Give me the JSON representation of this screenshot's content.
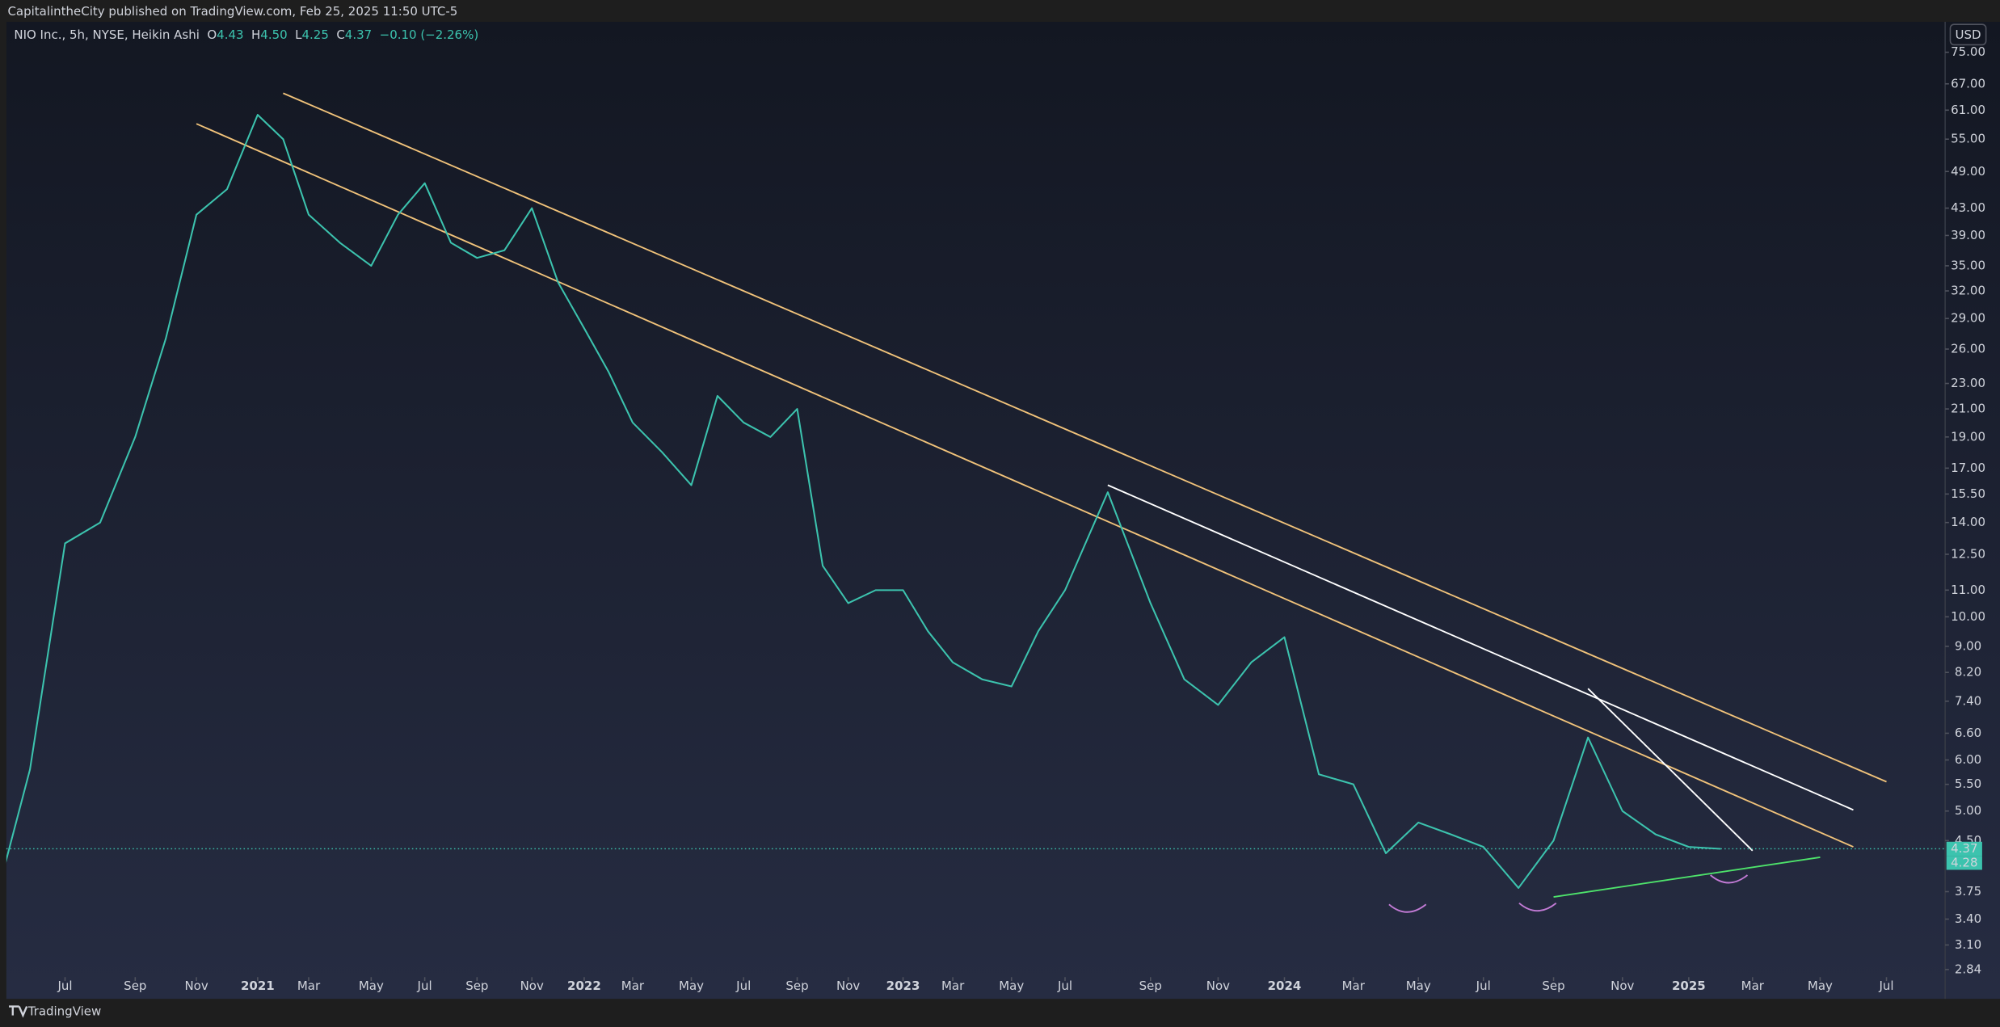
{
  "header": {
    "publisher": "CapitalintheCity published on TradingView.com, Feb 25, 2025 11:50 UTC-5",
    "footer": "TradingView"
  },
  "chart_data": {
    "type": "line",
    "title": "NIO Inc., 5h, NYSE, Heikin Ashi",
    "ohlc": {
      "open_label": "O",
      "open": 4.43,
      "high_label": "H",
      "high": {
        "value": 4.5,
        "label": "4.50"
      },
      "low_label": "L",
      "low": 4.25,
      "close_label": "C",
      "close": 4.37,
      "change": "−0.10 (−2.26%)"
    },
    "currency": "USD",
    "color": "#3cc3ae",
    "scale": "log",
    "price_tags": [
      4.37,
      4.28
    ],
    "x": [
      "2020-05",
      "2020-06",
      "2020-07",
      "2020-08",
      "2020-09",
      "2020-10",
      "2020-11",
      "2020-12",
      "2021-01",
      "2021-02",
      "2021-03",
      "2021-04",
      "2021-05",
      "2021-06",
      "2021-07",
      "2021-08",
      "2021-09",
      "2021-10",
      "2021-11",
      "2021-12",
      "2022-01",
      "2022-02",
      "2022-03",
      "2022-04",
      "2022-05",
      "2022-06",
      "2022-07",
      "2022-08",
      "2022-09",
      "2022-10",
      "2022-11",
      "2022-12",
      "2023-01",
      "2023-02",
      "2023-03",
      "2023-04",
      "2023-05",
      "2023-06",
      "2023-07",
      "2023-08",
      "2023-09",
      "2023-10",
      "2023-11",
      "2023-12",
      "2024-01",
      "2024-02",
      "2024-03",
      "2024-04",
      "2024-05",
      "2024-06",
      "2024-07",
      "2024-08",
      "2024-09",
      "2024-10",
      "2024-11",
      "2024-12",
      "2025-01",
      "2025-02"
    ],
    "values": [
      3.6,
      5.8,
      13,
      14,
      19,
      27,
      42,
      46,
      60,
      55,
      42,
      38,
      35,
      42,
      47,
      38,
      36,
      37,
      43,
      33,
      28,
      24,
      20,
      18,
      16,
      22,
      20,
      19,
      21,
      12,
      10.5,
      11,
      11,
      9.5,
      8.5,
      8,
      7.8,
      9.5,
      11,
      15.6,
      10.5,
      8,
      7.3,
      8.5,
      9.3,
      5.7,
      5.5,
      4.3,
      4.8,
      4.6,
      4.4,
      3.8,
      4.5,
      6.5,
      5,
      4.6,
      4.4,
      4.37
    ],
    "xlim": [
      "2020-05",
      "2025-09"
    ],
    "xticks": [
      {
        "value": "2020-07",
        "label": "Jul"
      },
      {
        "value": "2020-09",
        "label": "Sep"
      },
      {
        "value": "2020-11",
        "label": "Nov"
      },
      {
        "value": "2021-01",
        "label": "2021"
      },
      {
        "value": "2021-03",
        "label": "Mar"
      },
      {
        "value": "2021-05",
        "label": "May"
      },
      {
        "value": "2021-07",
        "label": "Jul"
      },
      {
        "value": "2021-09",
        "label": "Sep"
      },
      {
        "value": "2021-11",
        "label": "Nov"
      },
      {
        "value": "2022-01",
        "label": "2022"
      },
      {
        "value": "2022-03",
        "label": "Mar"
      },
      {
        "value": "2022-05",
        "label": "May"
      },
      {
        "value": "2022-07",
        "label": "Jul"
      },
      {
        "value": "2022-09",
        "label": "Sep"
      },
      {
        "value": "2022-11",
        "label": "Nov"
      },
      {
        "value": "2023-01",
        "label": "2023"
      },
      {
        "value": "2023-03",
        "label": "Mar"
      },
      {
        "value": "2023-05",
        "label": "May"
      },
      {
        "value": "2023-07",
        "label": "Jul"
      },
      {
        "value": "2023-09",
        "label": "Sep"
      },
      {
        "value": "2023-11",
        "label": "Nov"
      },
      {
        "value": "2024-01",
        "label": "2024"
      },
      {
        "value": "2024-03",
        "label": "Mar"
      },
      {
        "value": "2024-05",
        "label": "May"
      },
      {
        "value": "2024-07",
        "label": "Jul"
      },
      {
        "value": "2024-09",
        "label": "Sep"
      },
      {
        "value": "2024-11",
        "label": "Nov"
      },
      {
        "value": "2025-01",
        "label": "2025"
      },
      {
        "value": "2025-03",
        "label": "Mar"
      },
      {
        "value": "2025-05",
        "label": "May"
      },
      {
        "value": "2025-07",
        "label": "Jul"
      }
    ],
    "ylim": [
      2.57,
      83.6
    ],
    "yticks": [
      {
        "value": 75,
        "label": "75.00"
      },
      {
        "value": 67,
        "label": "67.00"
      },
      {
        "value": 61,
        "label": "61.00"
      },
      {
        "value": 55,
        "label": "55.00"
      },
      {
        "value": 49,
        "label": "49.00"
      },
      {
        "value": 43,
        "label": "43.00"
      },
      {
        "value": 39,
        "label": "39.00"
      },
      {
        "value": 35,
        "label": "35.00"
      },
      {
        "value": 32,
        "label": "32.00"
      },
      {
        "value": 29,
        "label": "29.00"
      },
      {
        "value": 26,
        "label": "26.00"
      },
      {
        "value": 23,
        "label": "23.00"
      },
      {
        "value": 21,
        "label": "21.00"
      },
      {
        "value": 19,
        "label": "19.00"
      },
      {
        "value": 17,
        "label": "17.00"
      },
      {
        "value": 15.5,
        "label": "15.50"
      },
      {
        "value": 14,
        "label": "14.00"
      },
      {
        "value": 12.5,
        "label": "12.50"
      },
      {
        "value": 11,
        "label": "11.00"
      },
      {
        "value": 10,
        "label": "10.00"
      },
      {
        "value": 9,
        "label": "9.00"
      },
      {
        "value": 8.2,
        "label": "8.20"
      },
      {
        "value": 7.4,
        "label": "7.40"
      },
      {
        "value": 6.6,
        "label": "6.60"
      },
      {
        "value": 6,
        "label": "6.00"
      },
      {
        "value": 5.5,
        "label": "5.50"
      },
      {
        "value": 5,
        "label": "5.00"
      },
      {
        "value": 4.5,
        "label": "4.50"
      },
      {
        "value": 3.75,
        "label": "3.75"
      },
      {
        "value": 3.4,
        "label": "3.40"
      },
      {
        "value": 3.1,
        "label": "3.10"
      },
      {
        "value": 2.84,
        "label": "2.84"
      }
    ],
    "drawings": [
      {
        "color": "#f0c27a",
        "x": [
          "2021-02",
          "2025-07"
        ],
        "y": [
          64.8,
          5.55
        ]
      },
      {
        "color": "#f0c27a",
        "x": [
          "2020-11",
          "2025-06"
        ],
        "y": [
          58.1,
          4.4
        ]
      },
      {
        "color": "#ffffff",
        "x": [
          "2023-08",
          "2025-06"
        ],
        "y": [
          16,
          5.02
        ]
      },
      {
        "color": "#ffffff",
        "x": [
          "2024-10",
          "2025-03"
        ],
        "y": [
          7.74,
          4.34
        ]
      },
      {
        "color": "#4ee36b",
        "x": [
          "2024-09",
          "2025-05"
        ],
        "y": [
          3.68,
          4.24
        ]
      }
    ]
  }
}
